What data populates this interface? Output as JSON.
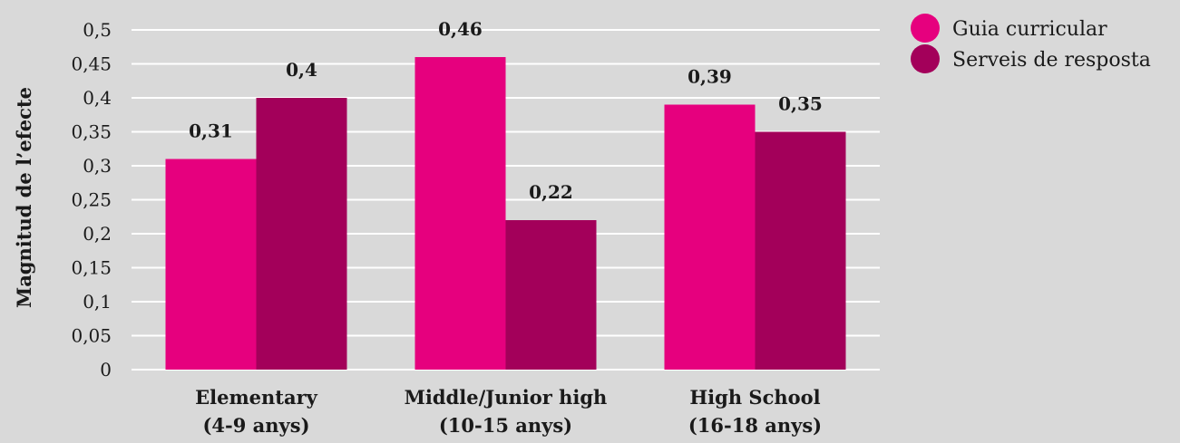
{
  "chart_data": {
    "type": "bar",
    "categories": [
      [
        "Elementary",
        "(4-9 anys)"
      ],
      [
        "Middle/Junior high",
        "(10-15 anys)"
      ],
      [
        "High School",
        "(16-18 anys)"
      ]
    ],
    "series": [
      {
        "name": "Guia curricular",
        "values": [
          0.31,
          0.46,
          0.39
        ],
        "labels": [
          "0,31",
          "0,46",
          "0,39"
        ],
        "color": "#e6007e"
      },
      {
        "name": "Serveis de resposta",
        "values": [
          0.4,
          0.22,
          0.35
        ],
        "labels": [
          "0,4",
          "0,22",
          "0,35"
        ],
        "color": "#a3005a"
      }
    ],
    "ylabel": "Magnitud de l’efecte",
    "ylim": [
      0,
      0.5
    ],
    "yticks": [
      0,
      0.05,
      0.1,
      0.15,
      0.2,
      0.25,
      0.3,
      0.35,
      0.4,
      0.45,
      0.5
    ],
    "ytick_labels": [
      "0",
      "0,05",
      "0,1",
      "0,15",
      "0,2",
      "0,25",
      "0,3",
      "0,35",
      "0,4",
      "0,45",
      "0,5"
    ],
    "grid": true,
    "gridline_color": "#ffffff",
    "legend": "top-right",
    "background": "#d9d9d9"
  }
}
